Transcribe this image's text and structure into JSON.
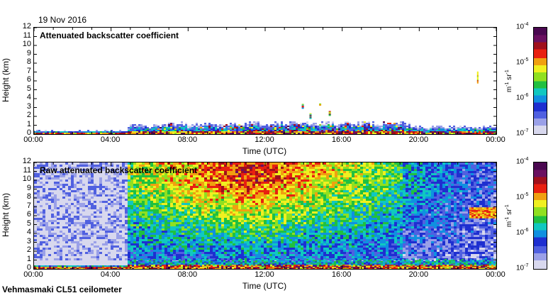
{
  "date": "19 Nov 2016",
  "footer": "Vehmasmaki CL51 ceilometer",
  "chart_data": [
    {
      "type": "heatmap",
      "title": "Attenuated backscatter coefficient",
      "xlabel": "Time (UTC)",
      "ylabel": "Height (km)",
      "x_ticks": [
        "00:00",
        "04:00",
        "08:00",
        "12:00",
        "16:00",
        "20:00",
        "00:00"
      ],
      "y_ticks": [
        "0",
        "1",
        "2",
        "3",
        "4",
        "5",
        "6",
        "7",
        "8",
        "9",
        "10",
        "11",
        "12"
      ],
      "xlim_hours": [
        0,
        24
      ],
      "ylim_km": [
        0,
        12
      ],
      "colorbar": {
        "ticks": [
          "10^-7",
          "10^-6",
          "10^-5",
          "10^-4"
        ],
        "unit": "m^-1 sr^-1",
        "scale": "log"
      },
      "features": [
        {
          "desc": "boundary layer aerosol",
          "start_h": 0,
          "end_h": 24,
          "top_km": 0.3
        },
        {
          "desc": "thick boundary layer",
          "start_h": 5,
          "end_h": 19,
          "top_km": 1.2
        },
        {
          "desc": "cloud fragments",
          "time_h": 14,
          "height_km": 3.3
        },
        {
          "desc": "elevated layer",
          "time_h": 23,
          "height_km": 6.1
        }
      ]
    },
    {
      "type": "heatmap",
      "title": "Raw attenuated backscatter coefficient",
      "xlabel": "Time (UTC)",
      "ylabel": "Height (km)",
      "x_ticks": [
        "00:00",
        "04:00",
        "08:00",
        "12:00",
        "16:00",
        "20:00",
        "00:00"
      ],
      "y_ticks": [
        "0",
        "1",
        "2",
        "3",
        "4",
        "5",
        "6",
        "7",
        "8",
        "9",
        "10",
        "11",
        "12"
      ],
      "xlim_hours": [
        0,
        24
      ],
      "ylim_km": [
        0,
        12
      ],
      "colorbar": {
        "ticks": [
          "10^-7",
          "10^-6",
          "10^-5",
          "10^-4"
        ],
        "unit": "m^-1 sr^-1",
        "scale": "log"
      },
      "features": [
        {
          "desc": "noise (night, low background)",
          "start_h": 0,
          "end_h": 4.8
        },
        {
          "desc": "daytime solar noise",
          "start_h": 4.8,
          "end_h": 24
        },
        {
          "desc": "elevated layer",
          "time_h": 23,
          "height_km": 6.1
        }
      ]
    }
  ]
}
